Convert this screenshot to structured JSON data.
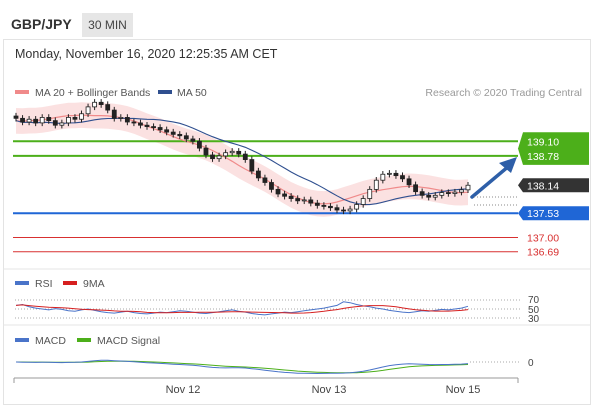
{
  "header": {
    "symbol": "GBP/JPY",
    "timeframe": "30 MIN",
    "datetime": "Monday, November 16, 2020 12:25:35 AM CET"
  },
  "chart_data": {
    "type": "candlestick",
    "instrument": "GBP/JPY",
    "source_note": "Research © 2020 Trading Central",
    "legend": [
      {
        "label": "MA 20 + Bollinger Bands",
        "color": "#f08a8a"
      },
      {
        "label": "MA 50",
        "color": "#2f4f8f"
      }
    ],
    "x_ticks": [
      "Nov 12",
      "Nov 13",
      "Nov 15"
    ],
    "y_range": [
      136.4,
      140.0
    ],
    "last_price": 138.14,
    "levels": [
      {
        "value": 139.1,
        "label": "139.10",
        "kind": "resistance",
        "color": "#4caf1a"
      },
      {
        "value": 138.78,
        "label": "138.78",
        "kind": "resistance",
        "color": "#4caf1a"
      },
      {
        "value": 137.53,
        "label": "137.53",
        "kind": "pivot",
        "color": "#1f66d6"
      },
      {
        "value": 137.0,
        "label": "137.00",
        "kind": "support",
        "color": "#d83030"
      },
      {
        "value": 136.69,
        "label": "136.69",
        "kind": "support",
        "color": "#d83030"
      }
    ],
    "closes": [
      139.6,
      139.52,
      139.58,
      139.5,
      139.62,
      139.55,
      139.45,
      139.5,
      139.62,
      139.58,
      139.7,
      139.85,
      139.95,
      139.9,
      139.78,
      139.6,
      139.62,
      139.52,
      139.5,
      139.45,
      139.42,
      139.4,
      139.35,
      139.3,
      139.25,
      139.22,
      139.15,
      139.1,
      138.95,
      138.8,
      138.72,
      138.78,
      138.85,
      138.88,
      138.82,
      138.7,
      138.45,
      138.3,
      138.2,
      138.05,
      137.95,
      137.9,
      137.85,
      137.8,
      137.82,
      137.75,
      137.7,
      137.68,
      137.65,
      137.6,
      137.58,
      137.62,
      137.72,
      137.85,
      138.05,
      138.25,
      138.38,
      138.4,
      138.35,
      138.28,
      138.15,
      138.0,
      137.92,
      137.88,
      137.92,
      137.98,
      137.96,
      137.99,
      138.04,
      138.14
    ],
    "rsi": {
      "label": "RSI",
      "signal_label": "9MA",
      "levels": [
        "70",
        "50",
        "30"
      ],
      "values": [
        58,
        60,
        55,
        52,
        50,
        48,
        51,
        49,
        46,
        45,
        48,
        50,
        47,
        44,
        42,
        41,
        43,
        45,
        42,
        40,
        39,
        41,
        43,
        42,
        44,
        46,
        45,
        43,
        41,
        40,
        42,
        44,
        46,
        48,
        45,
        43,
        40,
        38,
        37,
        39,
        41,
        43,
        42,
        44,
        46,
        48,
        50,
        52,
        55,
        58,
        66,
        64,
        60,
        57,
        55,
        52,
        50,
        47,
        45,
        43,
        42,
        44,
        46,
        45,
        47,
        49,
        48,
        50,
        52,
        56
      ]
    },
    "macd": {
      "label": "MACD",
      "signal_label": "MACD Signal",
      "zero_label": "0"
    }
  }
}
